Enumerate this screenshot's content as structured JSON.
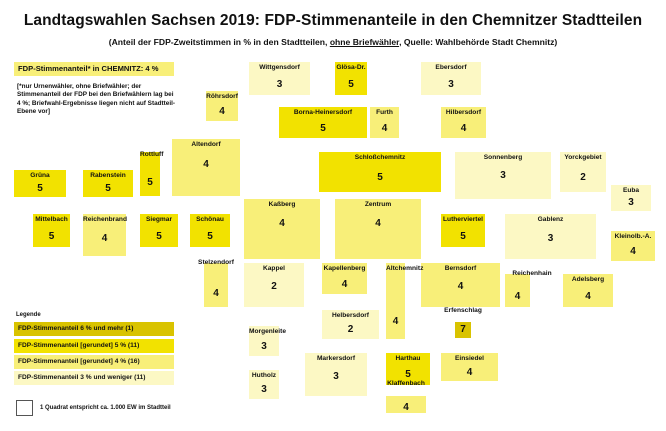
{
  "title": "Landtagswahlen Sachsen 2019: FDP-Stimmenanteile in den Chemnitzer Stadtteilen",
  "subtitle": {
    "prefix": "(Anteil der FDP-Zweitstimmen in % in den Stadtteilen, ",
    "underlined": "ohne Briefwähler",
    "suffix": ", Quelle: Wahlbehörde Stadt Chemnitz)"
  },
  "total_label": "FDP-Stimmenanteil* in CHEMNITZ: 4 %",
  "footnote": "[*nur Urnenwähler, ohne Briefwähler; der Stimmenanteil der FDP bei den Briefwählern lag bei 4 %; Briefwahl-Ergebnisse liegen nicht auf Stadtteil-Ebene vor]",
  "colors": {
    "class_6_plus": "#d9c300",
    "class_5": "#f2e200",
    "class_4": "#f8ef79",
    "class_3_minus": "#fcf8c4"
  },
  "legend": {
    "title": "Legende",
    "items": [
      {
        "label": "FDP-Stimmenanteil 6 % und mehr  (1)",
        "color": "#d9c300"
      },
      {
        "label": "FDP-Stimmenanteil [gerundet] 5 % (11)",
        "color": "#f2e200"
      },
      {
        "label": "FDP-Stimmenanteil [gerundet] 4 % (16)",
        "color": "#f8ef79"
      },
      {
        "label": "FDP-Stimmenanteil 3 % und weniger (11)",
        "color": "#fcf8c4"
      }
    ],
    "scale_label": "1 Quadrat entspricht ca. 1.000 EW im Stadtteil"
  },
  "chart_data": {
    "type": "table",
    "title": "Landtagswahlen Sachsen 2019: FDP-Stimmenanteile in den Chemnitzer Stadtteilen",
    "unit": "%",
    "districts": [
      {
        "name": "Wittgensdorf",
        "value": 3
      },
      {
        "name": "Glösa-Dr.",
        "value": 5
      },
      {
        "name": "Ebersdorf",
        "value": 3
      },
      {
        "name": "Röhrsdorf",
        "value": 4
      },
      {
        "name": "Borna-Heinersdorf",
        "value": 5
      },
      {
        "name": "Furth",
        "value": 4
      },
      {
        "name": "Hilbersdorf",
        "value": 4
      },
      {
        "name": "Altendorf",
        "value": 4
      },
      {
        "name": "Rottluff",
        "value": 5
      },
      {
        "name": "Grüna",
        "value": 5
      },
      {
        "name": "Rabenstein",
        "value": 5
      },
      {
        "name": "Schloßchemnitz",
        "value": 5
      },
      {
        "name": "Sonnenberg",
        "value": 3
      },
      {
        "name": "Yorckgebiet",
        "value": 2
      },
      {
        "name": "Euba",
        "value": 3
      },
      {
        "name": "Mittelbach",
        "value": 5
      },
      {
        "name": "Reichenbrand",
        "value": 4
      },
      {
        "name": "Siegmar",
        "value": 5
      },
      {
        "name": "Schönau",
        "value": 5
      },
      {
        "name": "Kaßberg",
        "value": 4
      },
      {
        "name": "Zentrum",
        "value": 4
      },
      {
        "name": "Lutherviertel",
        "value": 5
      },
      {
        "name": "Gablenz",
        "value": 3
      },
      {
        "name": "Kleinolb.-A.",
        "value": 4
      },
      {
        "name": "Stelzendorf",
        "value": 4
      },
      {
        "name": "Kappel",
        "value": 2
      },
      {
        "name": "Kapellenberg",
        "value": 4
      },
      {
        "name": "Bernsdorf",
        "value": 4
      },
      {
        "name": "Reichenhain",
        "value": 4
      },
      {
        "name": "Adelsberg",
        "value": 4
      },
      {
        "name": "Helbersdorf",
        "value": 2
      },
      {
        "name": "Altchemnitz",
        "value": 4
      },
      {
        "name": "Erfenschlag",
        "value": 7
      },
      {
        "name": "Morgenleite",
        "value": 3
      },
      {
        "name": "Markersdorf",
        "value": 3
      },
      {
        "name": "Harthau",
        "value": 5
      },
      {
        "name": "Einsiedel",
        "value": 4
      },
      {
        "name": "Hutholz",
        "value": 3
      },
      {
        "name": "Klaffenbach",
        "value": 4
      }
    ]
  }
}
